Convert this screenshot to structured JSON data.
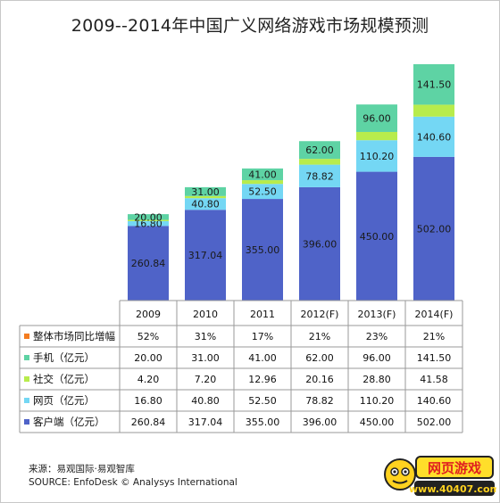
{
  "title": "2009--2014年中国广义网络游戏市场规模预测",
  "chart_data": {
    "type": "bar",
    "stacked": true,
    "categories": [
      "2009",
      "2010",
      "2011",
      "2012(F)",
      "2013(F)",
      "2014(F)"
    ],
    "series": [
      {
        "name": "客户端（亿元）",
        "values": [
          260.84,
          317.04,
          355.0,
          396.0,
          450.0,
          502.0
        ],
        "color": "#4f63c8",
        "labels": [
          "260.84",
          "317.04",
          "355.00",
          "396.00",
          "450.00",
          "502.00"
        ]
      },
      {
        "name": "网页（亿元）",
        "values": [
          16.8,
          40.8,
          52.5,
          78.82,
          110.2,
          140.6
        ],
        "color": "#74d7f4",
        "labels": [
          "16.80",
          "40.80",
          "52.50",
          "78.82",
          "110.20",
          "140.60"
        ]
      },
      {
        "name": "社交（亿元）",
        "values": [
          4.2,
          7.2,
          12.96,
          20.16,
          28.8,
          41.58
        ],
        "color": "#b8ec4c"
      },
      {
        "name": "手机（亿元）",
        "values": [
          20.0,
          31.0,
          41.0,
          62.0,
          96.0,
          141.5
        ],
        "color": "#5ed3a4",
        "labels": [
          "20.00",
          "31.00",
          "41.00",
          "62.00",
          "96.00",
          "141.50"
        ]
      }
    ],
    "extra_row": {
      "name": "整体市场同比增幅",
      "values": [
        "52%",
        "31%",
        "17%",
        "21%",
        "23%",
        "21%"
      ],
      "color": "#f47c20"
    },
    "grid": false
  },
  "table": {
    "rows": [
      {
        "name": "整体市场同比增幅",
        "values": [
          "52%",
          "31%",
          "17%",
          "21%",
          "23%",
          "21%"
        ],
        "color": "#f47c20"
      },
      {
        "name": "手机（亿元）",
        "values": [
          "20.00",
          "31.00",
          "41.00",
          "62.00",
          "96.00",
          "141.50"
        ],
        "color": "#5ed3a4"
      },
      {
        "name": "社交（亿元）",
        "values": [
          "4.20",
          "7.20",
          "12.96",
          "20.16",
          "28.80",
          "41.58"
        ],
        "color": "#b8ec4c"
      },
      {
        "name": "网页（亿元）",
        "values": [
          "16.80",
          "40.80",
          "52.50",
          "78.82",
          "110.20",
          "140.60"
        ],
        "color": "#74d7f4"
      },
      {
        "name": "客户端（亿元）",
        "values": [
          "260.84",
          "317.04",
          "355.00",
          "396.00",
          "450.00",
          "502.00"
        ],
        "color": "#4f63c8"
      }
    ]
  },
  "source_cn": "来源：易观国际·易观智库",
  "source_en": "SOURCE: EnfoDesk © Analysys International",
  "logo": {
    "line1": "网页游戏",
    "line2": "www.40407.com"
  }
}
